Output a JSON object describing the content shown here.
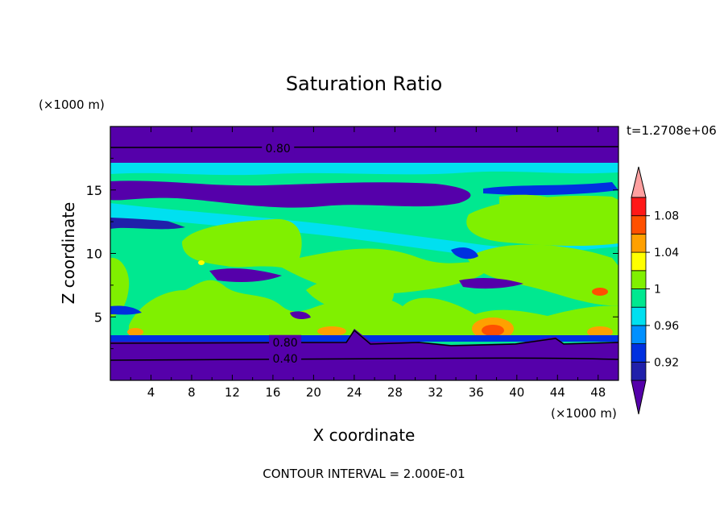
{
  "chart_data": {
    "type": "heatmap",
    "title": "Saturation Ratio",
    "xlabel": "X coordinate",
    "ylabel": "Z coordinate",
    "x_unit": "(×1000 m)",
    "y_unit": "(×1000 m)",
    "time_label": "t=1.2708e+06",
    "footer": "CONTOUR INTERVAL = 2.000E-01",
    "xlim": [
      0,
      50
    ],
    "ylim": [
      0,
      20
    ],
    "x_ticks": [
      4,
      8,
      12,
      16,
      20,
      24,
      28,
      32,
      36,
      40,
      44,
      48
    ],
    "y_ticks": [
      5,
      10,
      15
    ],
    "contour_labels": [
      {
        "text": "0.80",
        "x": 16.5,
        "z": 18.3
      },
      {
        "text": "0.80",
        "x": 17.2,
        "z": 3.0
      },
      {
        "text": "0.40",
        "x": 17.2,
        "z": 1.7
      }
    ],
    "colorbar": {
      "levels": [
        0.9,
        0.92,
        0.94,
        0.96,
        0.98,
        1.0,
        1.02,
        1.04,
        1.06,
        1.08,
        1.1
      ],
      "tick_labels": [
        "0.92",
        "0.96",
        "1",
        "1.04",
        "1.08"
      ],
      "colors": [
        "#5500aa",
        "#2020aa",
        "#0030e0",
        "#0090ff",
        "#00e0f0",
        "#00e890",
        "#80f000",
        "#ffff00",
        "#ffa000",
        "#ff5000",
        "#ff1818",
        "#ffa0a0"
      ]
    }
  }
}
